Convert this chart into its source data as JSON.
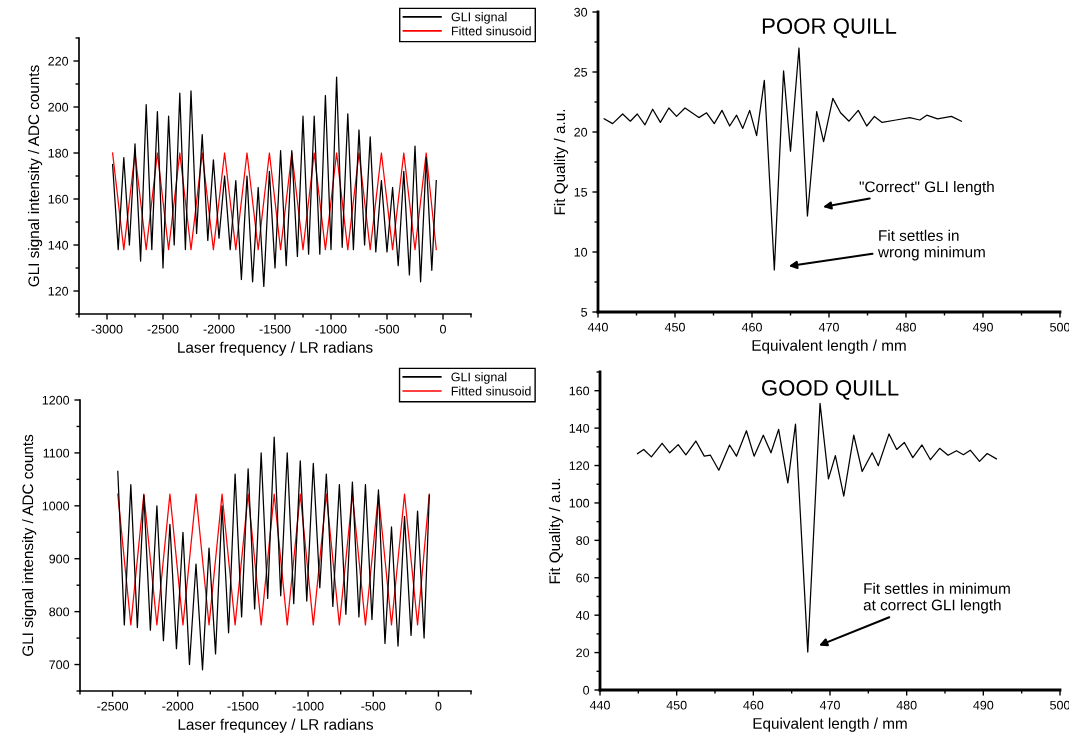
{
  "chart_data": [
    {
      "type": "line",
      "xlabel": "Laser frequency / LR radians",
      "ylabel": "GLI signal intensity / ADC counts",
      "xlim": [
        -3250,
        250
      ],
      "ylim": [
        110,
        230
      ],
      "xticks": [
        -3000,
        -2500,
        -2000,
        -1500,
        -1000,
        -500,
        0
      ],
      "yticks": [
        120,
        140,
        160,
        180,
        200,
        220
      ],
      "legend": "top right",
      "grid": false,
      "series": [
        {
          "name": "Fitted sinusoid",
          "color": "#ff0000",
          "x": [
            -2950,
            -2850,
            -2750,
            -2650,
            -2550,
            -2450,
            -2350,
            -2250,
            -2150,
            -2050,
            -1950,
            -1850,
            -1750,
            -1650,
            -1550,
            -1450,
            -1350,
            -1250,
            -1150,
            -1050,
            -950,
            -850,
            -750,
            -650,
            -550,
            -450,
            -350,
            -250,
            -150,
            -60
          ],
          "values": [
            180,
            138,
            180,
            138,
            180,
            138,
            180,
            138,
            180,
            138,
            180,
            138,
            180,
            138,
            180,
            138,
            180,
            138,
            180,
            138,
            180,
            138,
            180,
            138,
            180,
            138,
            180,
            138,
            180,
            138
          ]
        },
        {
          "name": "GLI signal",
          "color": "#000000",
          "x": [
            -2950,
            -2900,
            -2850,
            -2800,
            -2750,
            -2700,
            -2650,
            -2600,
            -2550,
            -2500,
            -2450,
            -2400,
            -2350,
            -2300,
            -2250,
            -2200,
            -2150,
            -2100,
            -2050,
            -2000,
            -1950,
            -1900,
            -1850,
            -1800,
            -1750,
            -1700,
            -1650,
            -1600,
            -1550,
            -1500,
            -1450,
            -1400,
            -1350,
            -1300,
            -1250,
            -1200,
            -1150,
            -1100,
            -1050,
            -1000,
            -950,
            -900,
            -850,
            -800,
            -750,
            -700,
            -650,
            -600,
            -550,
            -500,
            -450,
            -400,
            -350,
            -300,
            -250,
            -200,
            -150,
            -100,
            -60
          ],
          "values": [
            175,
            138,
            178,
            140,
            184,
            133,
            201,
            138,
            198,
            130,
            196,
            140,
            206,
            138,
            207,
            145,
            188,
            142,
            177,
            143,
            170,
            138,
            168,
            125,
            170,
            124,
            165,
            122,
            172,
            130,
            181,
            131,
            181,
            135,
            196,
            136,
            196,
            136,
            205,
            138,
            213,
            139,
            197,
            138,
            190,
            140,
            187,
            137,
            168,
            137,
            165,
            131,
            172,
            127,
            183,
            124,
            178,
            129,
            168
          ]
        }
      ]
    },
    {
      "type": "line",
      "title": "POOR QUILL",
      "xlabel": "Equivalent length / mm",
      "ylabel": "Fit Quality / a.u.",
      "xlim": [
        440,
        500
      ],
      "ylim": [
        5,
        30
      ],
      "xticks": [
        440,
        450,
        460,
        470,
        480,
        490,
        500
      ],
      "yticks": [
        5,
        10,
        15,
        20,
        25,
        30
      ],
      "grid": false,
      "annotations": [
        "\"Correct\" GLI length",
        "Fit settles in\nwrong minimum"
      ],
      "series": [
        {
          "color": "#000000",
          "x": [
            440.8,
            441.9,
            443.2,
            444.2,
            445.1,
            446.1,
            447.1,
            448.1,
            449.2,
            450.2,
            451.3,
            453.1,
            454.1,
            455.1,
            456.1,
            457.1,
            458.0,
            458.8,
            459.7,
            460.6,
            461.6,
            462.9,
            464.1,
            465.0,
            466.1,
            467.2,
            468.4,
            469.3,
            470.5,
            471.5,
            472.6,
            473.8,
            474.9,
            475.9,
            476.9,
            478.7,
            480.5,
            481.8,
            482.7,
            484.1,
            485.9,
            487.2
          ],
          "values": [
            21.1,
            20.7,
            21.5,
            20.9,
            21.5,
            20.6,
            21.9,
            20.8,
            22.0,
            21.3,
            22.0,
            21.2,
            21.6,
            20.7,
            21.8,
            20.5,
            21.4,
            20.3,
            21.8,
            19.7,
            24.3,
            8.5,
            25.1,
            18.4,
            27.0,
            13.0,
            21.7,
            19.2,
            22.8,
            21.6,
            20.9,
            21.8,
            20.5,
            21.3,
            20.8,
            21.0,
            21.2,
            21.0,
            21.4,
            21.1,
            21.3,
            20.9
          ]
        }
      ]
    },
    {
      "type": "line",
      "xlabel": "Laser frequncey / LR radians",
      "ylabel": "GLI signal intensity / ADC counts",
      "xlim": [
        -2750,
        250
      ],
      "ylim": [
        650,
        1200
      ],
      "xticks": [
        -2500,
        -2000,
        -1500,
        -1000,
        -500,
        0
      ],
      "yticks": [
        700,
        800,
        900,
        1000,
        1100,
        1200
      ],
      "legend": "top right",
      "grid": false,
      "series": [
        {
          "name": "Fitted sinusoid",
          "color": "#ff0000",
          "x": [
            -2460,
            -2360,
            -2260,
            -2160,
            -2060,
            -1960,
            -1860,
            -1760,
            -1660,
            -1560,
            -1460,
            -1360,
            -1260,
            -1160,
            -1060,
            -960,
            -860,
            -760,
            -660,
            -560,
            -460,
            -360,
            -260,
            -160,
            -70
          ],
          "values": [
            1022,
            775,
            1022,
            775,
            1022,
            775,
            1022,
            775,
            1022,
            775,
            1022,
            775,
            1022,
            775,
            1022,
            775,
            1022,
            775,
            1022,
            775,
            1022,
            775,
            1022,
            775,
            1022
          ]
        },
        {
          "name": "GLI signal",
          "color": "#000000",
          "x": [
            -2460,
            -2410,
            -2360,
            -2310,
            -2260,
            -2210,
            -2160,
            -2110,
            -2060,
            -2010,
            -1960,
            -1910,
            -1860,
            -1810,
            -1760,
            -1710,
            -1660,
            -1610,
            -1560,
            -1510,
            -1460,
            -1410,
            -1360,
            -1310,
            -1260,
            -1210,
            -1160,
            -1110,
            -1060,
            -1010,
            -960,
            -910,
            -860,
            -810,
            -760,
            -710,
            -660,
            -610,
            -560,
            -510,
            -460,
            -410,
            -360,
            -310,
            -260,
            -210,
            -160,
            -110,
            -70
          ],
          "values": [
            1065,
            775,
            1040,
            770,
            1020,
            765,
            1000,
            745,
            965,
            730,
            950,
            700,
            890,
            690,
            920,
            720,
            1000,
            760,
            1060,
            790,
            1070,
            805,
            1100,
            825,
            1130,
            830,
            1100,
            815,
            1085,
            820,
            1080,
            845,
            1060,
            810,
            1040,
            795,
            1045,
            790,
            1040,
            785,
            1030,
            740,
            960,
            735,
            980,
            755,
            990,
            750,
            1020
          ]
        }
      ]
    },
    {
      "type": "line",
      "title": "GOOD QUILL",
      "xlabel": "Equivalent length / mm",
      "ylabel": "Fit Quality / a.u.",
      "xlim": [
        440,
        500
      ],
      "ylim": [
        0,
        170
      ],
      "xticks": [
        440,
        450,
        460,
        470,
        480,
        490,
        500
      ],
      "yticks": [
        0,
        20,
        40,
        60,
        80,
        100,
        120,
        140,
        160
      ],
      "grid": false,
      "annotations": [
        "Fit settles in minimum\nat correct GLI length"
      ],
      "series": [
        {
          "color": "#000000",
          "x": [
            444.9,
            445.7,
            446.7,
            448.1,
            449.1,
            450.2,
            451.2,
            452.5,
            453.6,
            454.4,
            455.5,
            456.9,
            457.8,
            459.1,
            460.1,
            461.3,
            462.3,
            463.3,
            464.5,
            465.5,
            467.1,
            468.7,
            469.8,
            470.7,
            471.8,
            473.1,
            474.2,
            475.5,
            476.3,
            477.7,
            478.7,
            479.7,
            480.8,
            482.0,
            483.1,
            484.3,
            485.4,
            486.5,
            487.4,
            488.3,
            489.5,
            490.5,
            491.7
          ],
          "values": [
            126.4,
            128.6,
            124.6,
            131.9,
            126.8,
            131.2,
            125.7,
            133.1,
            125.0,
            125.5,
            117.5,
            131.0,
            125.0,
            138.6,
            125.0,
            136.2,
            126.8,
            139.3,
            110.7,
            142.1,
            20.3,
            153.2,
            112.9,
            125.3,
            103.7,
            136.2,
            116.8,
            126.8,
            119.9,
            136.9,
            128.6,
            132.3,
            124.2,
            131.0,
            123.1,
            129.2,
            125.5,
            127.9,
            125.8,
            128.2,
            122.2,
            126.4,
            123.6
          ]
        }
      ]
    }
  ]
}
